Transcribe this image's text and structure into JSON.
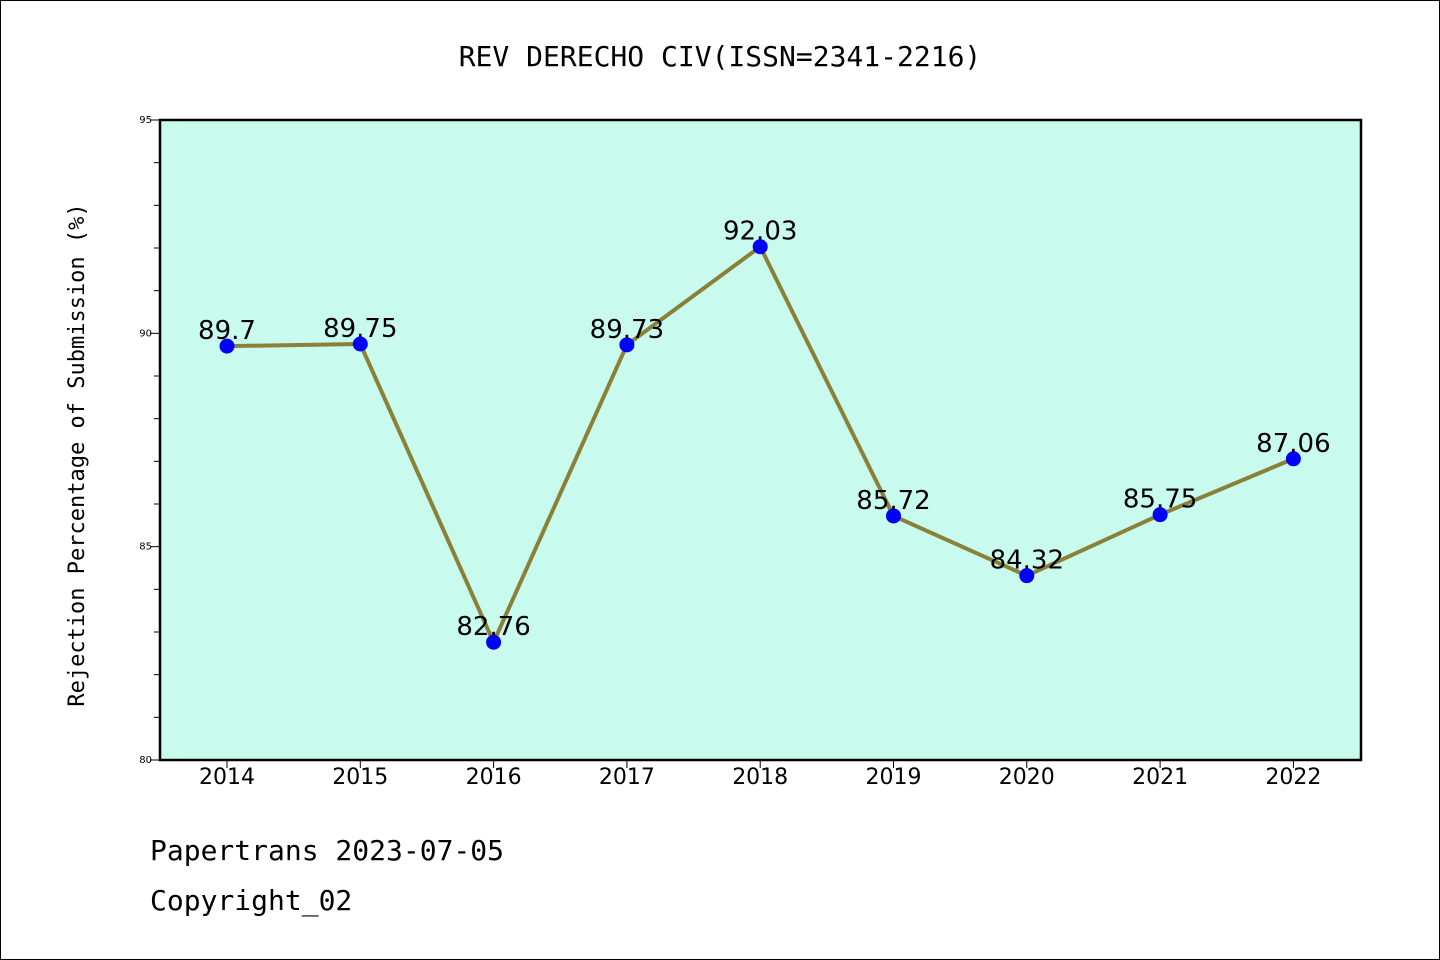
{
  "chart_data": {
    "type": "line",
    "title": "REV DERECHO CIV(ISSN=2341-2216)",
    "xlabel": "",
    "ylabel": "Rejection Percentage of Submission (%)",
    "categories": [
      "2014",
      "2015",
      "2016",
      "2017",
      "2018",
      "2019",
      "2020",
      "2021",
      "2022"
    ],
    "series": [
      {
        "values": [
          89.7,
          89.75,
          82.76,
          89.73,
          92.03,
          85.72,
          84.32,
          85.75,
          87.06
        ],
        "data_labels": [
          "89.7",
          "89.75",
          "82.76",
          "89.73",
          "92.03",
          "85.72",
          "84.32",
          "85.75",
          "87.06"
        ]
      }
    ],
    "ylim": [
      80,
      95
    ],
    "yticks": [
      "80",
      "85",
      "90",
      "95"
    ],
    "grid": false,
    "legend": "none",
    "colors": {
      "plot_background": "#c8faee",
      "line": "#8b8038",
      "marker": "#0000ff"
    }
  },
  "footer": {
    "line1": "Papertrans 2023-07-05",
    "line2": "Copyright_02"
  }
}
